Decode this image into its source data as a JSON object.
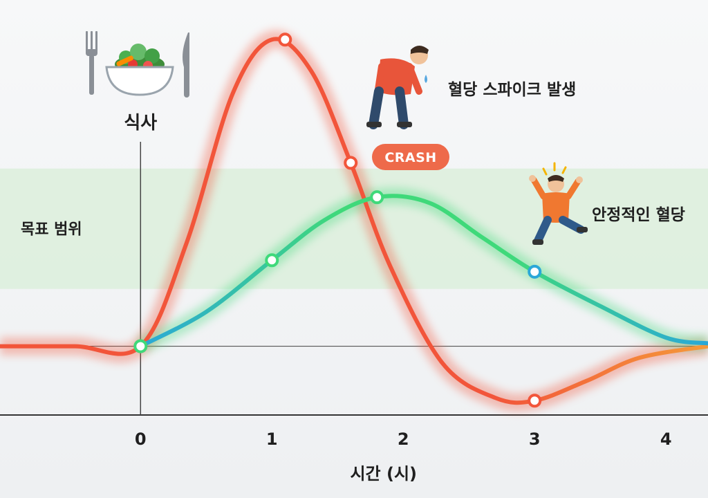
{
  "chart_data": {
    "type": "line",
    "title": "",
    "xlabel": "시간 (시)",
    "ylabel": "",
    "x_ticks": [
      "0",
      "1",
      "2",
      "3",
      "4"
    ],
    "xlim": [
      -1.07,
      4.32
    ],
    "ylim": [
      -1,
      6
    ],
    "grid": false,
    "target_band": {
      "label": "목표 범위",
      "ymin": 1.2,
      "ymax": 3.3
    },
    "meal_marker": {
      "x": 0,
      "label": "식사"
    },
    "series": [
      {
        "color": "#f2553a",
        "x": [
          -1.07,
          -0.5,
          0,
          0.35,
          0.7,
          1.0,
          1.3,
          1.6,
          1.9,
          2.3,
          2.7,
          3.0,
          3.4,
          3.8,
          4.32
        ],
        "y": [
          0.2,
          0.2,
          0.2,
          2.0,
          4.6,
          5.55,
          5.0,
          3.4,
          1.6,
          -0.1,
          -0.7,
          -0.75,
          -0.4,
          0.0,
          0.2
        ],
        "markers_x": [
          0,
          1.1,
          1.6,
          3.0
        ],
        "markers_y": [
          0.2,
          5.55,
          3.4,
          -0.75
        ]
      },
      {
        "color": "#3fd97a",
        "x": [
          0,
          0.5,
          1.0,
          1.4,
          1.8,
          2.2,
          2.6,
          3.0,
          3.5,
          4.0,
          4.32
        ],
        "y": [
          0.2,
          0.8,
          1.7,
          2.4,
          2.8,
          2.7,
          2.1,
          1.5,
          0.9,
          0.35,
          0.25
        ],
        "markers_x": [
          0,
          1.0,
          1.8,
          3.0
        ],
        "markers_y": [
          0.2,
          1.7,
          2.8,
          1.5
        ]
      }
    ],
    "annotations": [
      {
        "text": "혈당 스파이크 발생",
        "near_series": 0
      },
      {
        "text": "CRASH",
        "near_series": 0
      },
      {
        "text": "안정적인 혈당",
        "near_series": 1
      }
    ]
  },
  "colors": {
    "spike": "#f2553a",
    "stable_green": "#3fd97a",
    "stable_blue": "#2aa8d8",
    "band": "#dcefdc",
    "crash_badge": "#ee6a4a"
  },
  "icons": {
    "meal": "salad-bowl-with-fork-and-knife-icon",
    "tired_person": "tired-person-icon",
    "happy_person": "jumping-person-icon"
  }
}
